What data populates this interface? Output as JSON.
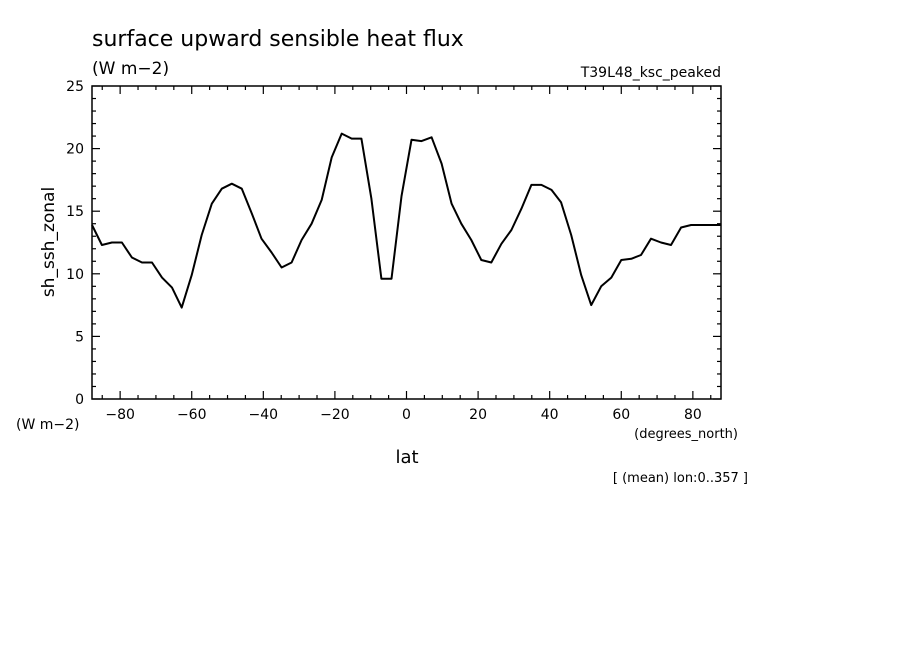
{
  "chart_data": {
    "type": "line",
    "title": "surface upward sensible heat flux",
    "units": "(W m−2)",
    "run_label": "T39L48_ksc_peaked",
    "ylabel": "sh_ssh_zonal",
    "y_units": "(W m−2)",
    "xlabel": "lat",
    "x_units": "(degrees_north)",
    "footnote": "[ (mean) lon:0..357 ]",
    "xlim": [
      -87.86,
      87.86
    ],
    "ylim": [
      0,
      25
    ],
    "x_ticks": [
      -80,
      -60,
      -40,
      -20,
      0,
      20,
      40,
      60,
      80
    ],
    "x_tick_labels": [
      "−80",
      "−60",
      "−40",
      "−20",
      "0",
      "20",
      "40",
      "60",
      "80"
    ],
    "y_ticks": [
      0,
      5,
      10,
      15,
      20,
      25
    ],
    "y_tick_labels": [
      "0",
      "5",
      "10",
      "15",
      "20",
      "25"
    ],
    "series": [
      {
        "x": [
          -87.9,
          -85.1,
          -82.3,
          -79.5,
          -76.7,
          -73.9,
          -71.1,
          -68.3,
          -65.5,
          -62.8,
          -60.0,
          -57.2,
          -54.4,
          -51.6,
          -48.8,
          -46.0,
          -43.2,
          -40.5,
          -37.7,
          -34.9,
          -32.1,
          -29.3,
          -26.5,
          -23.7,
          -20.9,
          -18.1,
          -15.3,
          -12.6,
          -9.8,
          -7.0,
          -4.2,
          -1.4,
          1.4,
          4.2,
          7.0,
          9.8,
          12.6,
          15.3,
          18.1,
          20.9,
          23.7,
          26.5,
          29.3,
          32.1,
          34.9,
          37.7,
          40.5,
          43.2,
          46.0,
          48.8,
          51.6,
          54.4,
          57.2,
          60.0,
          62.8,
          65.5,
          68.3,
          71.1,
          73.9,
          76.7,
          79.5,
          82.3,
          85.1,
          87.9
        ],
        "y": [
          13.9,
          12.3,
          12.5,
          12.5,
          11.3,
          10.9,
          10.9,
          9.7,
          8.9,
          7.3,
          9.9,
          13.1,
          15.6,
          16.8,
          17.2,
          16.8,
          14.8,
          12.8,
          11.7,
          10.5,
          10.9,
          12.7,
          14.0,
          15.9,
          19.3,
          21.2,
          20.8,
          20.8,
          16.0,
          9.6,
          9.6,
          16.2,
          20.7,
          20.6,
          20.9,
          18.8,
          15.6,
          14.0,
          12.7,
          11.1,
          10.9,
          12.4,
          13.5,
          15.2,
          17.1,
          17.1,
          16.7,
          15.7,
          13.1,
          9.9,
          7.5,
          9.0,
          9.7,
          11.1,
          11.2,
          11.5,
          12.8,
          12.5,
          12.3,
          13.7,
          13.9,
          13.9,
          13.9,
          13.9
        ]
      }
    ]
  }
}
